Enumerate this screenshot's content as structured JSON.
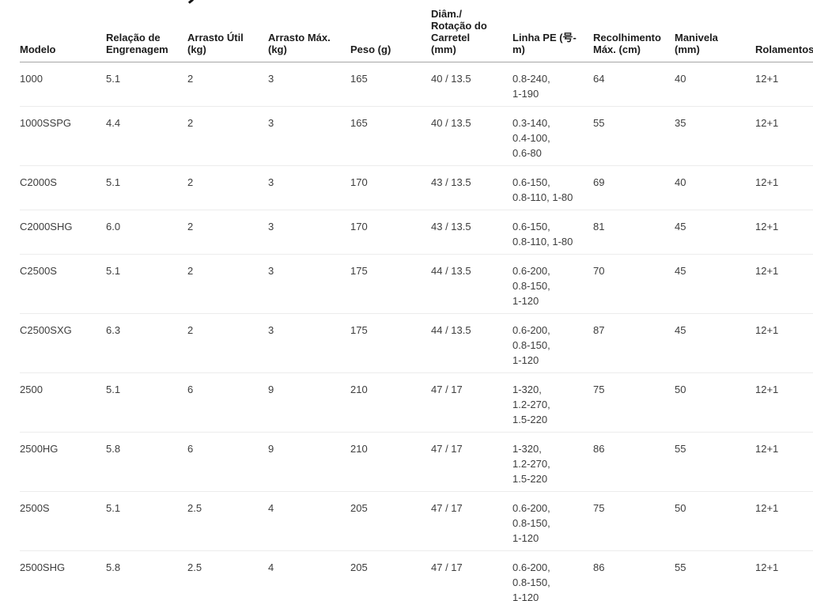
{
  "page": {
    "background": "#ffffff",
    "clipped_fragment_present": true
  },
  "colors": {
    "header_text": "#1c1c1c",
    "body_text": "#3d3d3d",
    "header_border": "#a6a6a6",
    "row_border": "#ececec"
  },
  "chart_data": {
    "type": "table",
    "title": "",
    "columns": [
      "Modelo",
      "Relação de Engrenagem",
      "Arrasto Útil (kg)",
      "Arrasto Máx. (kg)",
      "Peso (g)",
      "Diâm./Rotação do Carretel (mm)",
      "Linha PE (号-m)",
      "Recolhimento Máx. (cm)",
      "Manivela (mm)",
      "Rolamentos"
    ],
    "rows": [
      [
        "1000",
        "5.1",
        "2",
        "3",
        "165",
        "40 / 13.5",
        "0.8-240, 1-190",
        "64",
        "40",
        "12+1"
      ],
      [
        "1000SSPG",
        "4.4",
        "2",
        "3",
        "165",
        "40 / 13.5",
        "0.3-140, 0.4-100, 0.6-80",
        "55",
        "35",
        "12+1"
      ],
      [
        "C2000S",
        "5.1",
        "2",
        "3",
        "170",
        "43 / 13.5",
        "0.6-150, 0.8-110, 1-80",
        "69",
        "40",
        "12+1"
      ],
      [
        "C2000SHG",
        "6.0",
        "2",
        "3",
        "170",
        "43 / 13.5",
        "0.6-150, 0.8-110, 1-80",
        "81",
        "45",
        "12+1"
      ],
      [
        "C2500S",
        "5.1",
        "2",
        "3",
        "175",
        "44 / 13.5",
        "0.6-200, 0.8-150, 1-120",
        "70",
        "45",
        "12+1"
      ],
      [
        "C2500SXG",
        "6.3",
        "2",
        "3",
        "175",
        "44 / 13.5",
        "0.6-200, 0.8-150, 1-120",
        "87",
        "45",
        "12+1"
      ],
      [
        "2500",
        "5.1",
        "6",
        "9",
        "210",
        "47 / 17",
        "1-320, 1.2-270, 1.5-220",
        "75",
        "50",
        "12+1"
      ],
      [
        "2500HG",
        "5.8",
        "6",
        "9",
        "210",
        "47 / 17",
        "1-320, 1.2-270, 1.5-220",
        "86",
        "55",
        "12+1"
      ],
      [
        "2500S",
        "5.1",
        "2.5",
        "4",
        "205",
        "47 / 17",
        "0.6-200, 0.8-150, 1-120",
        "75",
        "50",
        "12+1"
      ],
      [
        "2500SHG",
        "5.8",
        "2.5",
        "4",
        "205",
        "47 / 17",
        "0.6-200, 0.8-150, 1-120",
        "86",
        "55",
        "12+1"
      ]
    ]
  },
  "table": {
    "columns": [
      {
        "key": "modelo",
        "label": "Modelo",
        "label_lines": [
          "Modelo"
        ]
      },
      {
        "key": "relacao",
        "label": "Relação de Engrenagem",
        "label_lines": [
          "Relação de",
          "Engrenagem"
        ]
      },
      {
        "key": "arrasto_util",
        "label": "Arrasto Útil (kg)",
        "label_lines": [
          "Arrasto Útil",
          "(kg)"
        ]
      },
      {
        "key": "arrasto_max",
        "label": "Arrasto Máx. (kg)",
        "label_lines": [
          "Arrasto Máx.",
          "(kg)"
        ]
      },
      {
        "key": "peso",
        "label": "Peso (g)",
        "label_lines": [
          "Peso (g)"
        ]
      },
      {
        "key": "diam_rotacao",
        "label": "Diâm./Rotação do Carretel (mm)",
        "label_lines": [
          "Diâm./",
          "Rotação do",
          "Carretel",
          "(mm)"
        ]
      },
      {
        "key": "linha_pe",
        "label": "Linha PE (号-m)",
        "label_lines": [
          "Linha PE (号-",
          "m)"
        ]
      },
      {
        "key": "recolhimento",
        "label": "Recolhimento Máx. (cm)",
        "label_lines": [
          "Recolhimento",
          "Máx. (cm)"
        ]
      },
      {
        "key": "manivela",
        "label": "Manivela (mm)",
        "label_lines": [
          "Manivela",
          "(mm)"
        ]
      },
      {
        "key": "rolamentos",
        "label": "Rolamentos",
        "label_lines": [
          "Rolamentos"
        ]
      }
    ],
    "rows": [
      {
        "modelo": "1000",
        "relacao": "5.1",
        "arrasto_util": "2",
        "arrasto_max": "3",
        "peso": "165",
        "diam_rotacao": "40 / 13.5",
        "linha_pe_lines": [
          "0.8-240,",
          "1-190"
        ],
        "recolhimento": "64",
        "manivela": "40",
        "rolamentos": "12+1"
      },
      {
        "modelo": "1000SSPG",
        "relacao": "4.4",
        "arrasto_util": "2",
        "arrasto_max": "3",
        "peso": "165",
        "diam_rotacao": "40 / 13.5",
        "linha_pe_lines": [
          "0.3-140,",
          "0.4-100,",
          "0.6-80"
        ],
        "recolhimento": "55",
        "manivela": "35",
        "rolamentos": "12+1"
      },
      {
        "modelo": "C2000S",
        "relacao": "5.1",
        "arrasto_util": "2",
        "arrasto_max": "3",
        "peso": "170",
        "diam_rotacao": "43 / 13.5",
        "linha_pe_lines": [
          "0.6-150,",
          "0.8-110, 1-80"
        ],
        "recolhimento": "69",
        "manivela": "40",
        "rolamentos": "12+1"
      },
      {
        "modelo": "C2000SHG",
        "relacao": "6.0",
        "arrasto_util": "2",
        "arrasto_max": "3",
        "peso": "170",
        "diam_rotacao": "43 / 13.5",
        "linha_pe_lines": [
          "0.6-150,",
          "0.8-110, 1-80"
        ],
        "recolhimento": "81",
        "manivela": "45",
        "rolamentos": "12+1"
      },
      {
        "modelo": "C2500S",
        "relacao": "5.1",
        "arrasto_util": "2",
        "arrasto_max": "3",
        "peso": "175",
        "diam_rotacao": "44 / 13.5",
        "linha_pe_lines": [
          "0.6-200,",
          "0.8-150,",
          "1-120"
        ],
        "recolhimento": "70",
        "manivela": "45",
        "rolamentos": "12+1"
      },
      {
        "modelo": "C2500SXG",
        "relacao": "6.3",
        "arrasto_util": "2",
        "arrasto_max": "3",
        "peso": "175",
        "diam_rotacao": "44 / 13.5",
        "linha_pe_lines": [
          "0.6-200,",
          "0.8-150,",
          "1-120"
        ],
        "recolhimento": "87",
        "manivela": "45",
        "rolamentos": "12+1"
      },
      {
        "modelo": "2500",
        "relacao": "5.1",
        "arrasto_util": "6",
        "arrasto_max": "9",
        "peso": "210",
        "diam_rotacao": "47 / 17",
        "linha_pe_lines": [
          "1-320,",
          "1.2-270,",
          "1.5-220"
        ],
        "recolhimento": "75",
        "manivela": "50",
        "rolamentos": "12+1"
      },
      {
        "modelo": "2500HG",
        "relacao": "5.8",
        "arrasto_util": "6",
        "arrasto_max": "9",
        "peso": "210",
        "diam_rotacao": "47 / 17",
        "linha_pe_lines": [
          "1-320,",
          "1.2-270,",
          "1.5-220"
        ],
        "recolhimento": "86",
        "manivela": "55",
        "rolamentos": "12+1"
      },
      {
        "modelo": "2500S",
        "relacao": "5.1",
        "arrasto_util": "2.5",
        "arrasto_max": "4",
        "peso": "205",
        "diam_rotacao": "47 / 17",
        "linha_pe_lines": [
          "0.6-200,",
          "0.8-150,",
          "1-120"
        ],
        "recolhimento": "75",
        "manivela": "50",
        "rolamentos": "12+1"
      },
      {
        "modelo": "2500SHG",
        "relacao": "5.8",
        "arrasto_util": "2.5",
        "arrasto_max": "4",
        "peso": "205",
        "diam_rotacao": "47 / 17",
        "linha_pe_lines": [
          "0.6-200,",
          "0.8-150,",
          "1-120"
        ],
        "recolhimento": "86",
        "manivela": "55",
        "rolamentos": "12+1"
      }
    ]
  }
}
